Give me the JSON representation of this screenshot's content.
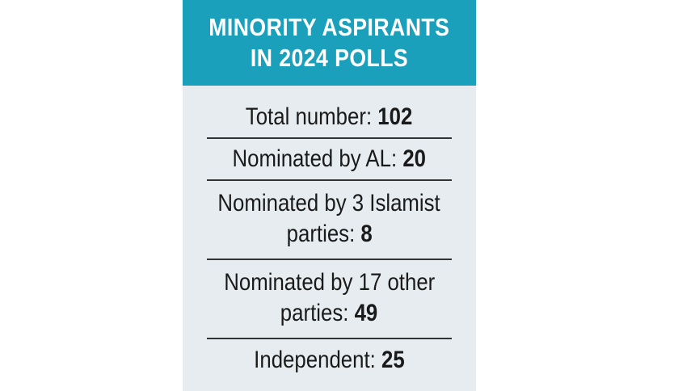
{
  "header": {
    "line1": "MINORITY ASPIRANTS",
    "line2": "IN 2024 POLLS"
  },
  "rows": [
    {
      "label": "Total number: ",
      "value": "102"
    },
    {
      "label": "Nominated by AL: ",
      "value": "20"
    },
    {
      "label_line1": "Nominated by 3 Islamist",
      "label_line2": "parties: ",
      "value": "8"
    },
    {
      "label_line1": "Nominated by 17 other",
      "label_line2": "parties: ",
      "value": "49"
    },
    {
      "label": "Independent: ",
      "value": "25"
    }
  ],
  "colors": {
    "header_bg": "#1aa0bb",
    "card_bg": "#e6ecef",
    "text": "#1a1a1a"
  }
}
